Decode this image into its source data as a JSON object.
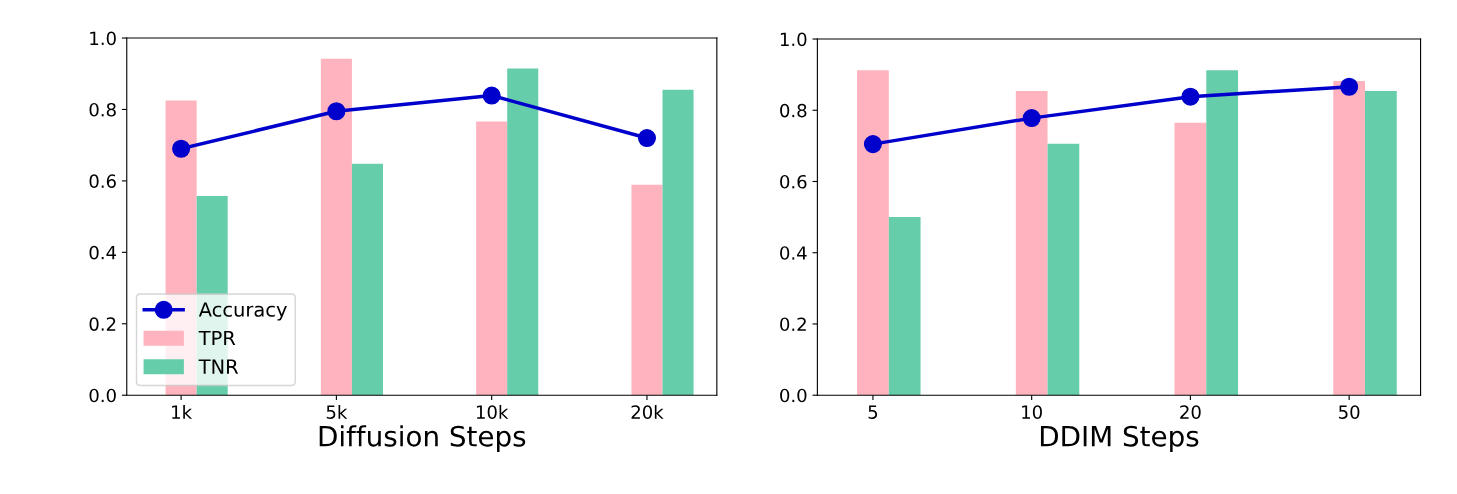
{
  "chart_data": [
    {
      "type": "bar",
      "xlabel": "Diffusion Steps",
      "categories": [
        "1k",
        "5k",
        "10k",
        "20k"
      ],
      "ylim": [
        0,
        1.0
      ],
      "yticks": [
        {
          "value": 0,
          "label": "0.0"
        },
        {
          "value": 0.2,
          "label": "0.2"
        },
        {
          "value": 0.4,
          "label": "0.4"
        },
        {
          "value": 0.6,
          "label": "0.6"
        },
        {
          "value": 0.8,
          "label": "0.8"
        },
        {
          "value": 1.0,
          "label": "1.0"
        }
      ],
      "legend": "bottom left",
      "grid": false,
      "series": [
        {
          "name": "Accuracy",
          "type": "line",
          "color": "#0000cc",
          "marker": "circle",
          "values": [
            0.69,
            0.795,
            0.839,
            0.72
          ]
        },
        {
          "name": "TPR",
          "color": "#ffb3be",
          "values": [
            0.825,
            0.942,
            0.766,
            0.589
          ]
        },
        {
          "name": "TNR",
          "color": "#66cdaa",
          "values": [
            0.558,
            0.648,
            0.915,
            0.855
          ]
        }
      ]
    },
    {
      "type": "bar",
      "xlabel": "DDIM Steps",
      "categories": [
        "5",
        "10",
        "20",
        "50"
      ],
      "ylim": [
        0,
        1.0
      ],
      "yticks": [
        {
          "value": 0,
          "label": "0.0"
        },
        {
          "value": 0.2,
          "label": "0.2"
        },
        {
          "value": 0.4,
          "label": "0.4"
        },
        {
          "value": 0.6,
          "label": "0.6"
        },
        {
          "value": 0.8,
          "label": "0.8"
        },
        {
          "value": 1.0,
          "label": "1.0"
        }
      ],
      "grid": false,
      "series": [
        {
          "type": "line",
          "color": "#0000cc",
          "marker": "circle",
          "values": [
            0.705,
            0.778,
            0.838,
            0.866
          ]
        },
        {
          "color": "#ffb3be",
          "values": [
            0.912,
            0.854,
            0.765,
            0.882
          ]
        },
        {
          "color": "#66cdaa",
          "values": [
            0.5,
            0.706,
            0.912,
            0.854
          ]
        }
      ]
    }
  ]
}
